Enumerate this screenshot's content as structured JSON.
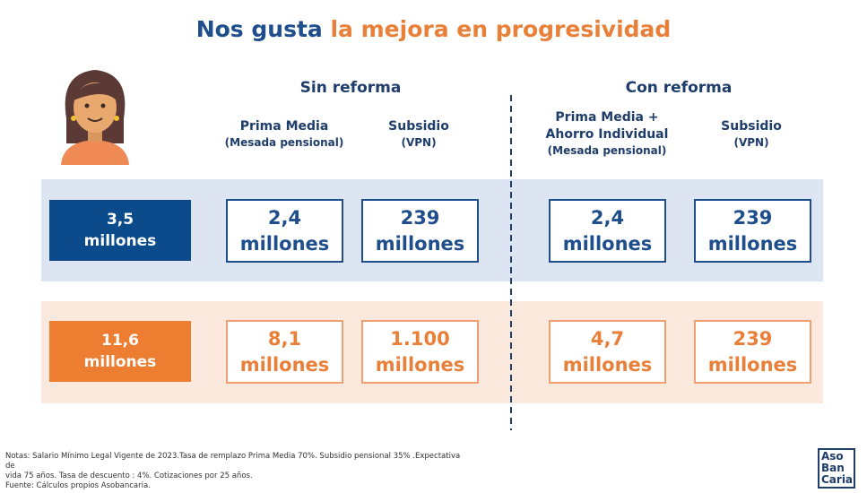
{
  "header": {
    "title_part1": "Nos gusta",
    "title_part2": "la mejora en progresividad"
  },
  "sections": [
    "Sin reforma",
    "Con reforma"
  ],
  "columns": [
    [
      {
        "text": "Prima Media",
        "size": "big"
      },
      {
        "text": "(Mesada pensional)",
        "size": "small"
      }
    ],
    [
      {
        "text": "Subsidio",
        "size": "big"
      },
      {
        "text": "(VPN)",
        "size": "small"
      }
    ],
    [
      {
        "text": "Prima Media +",
        "size": "big"
      },
      {
        "text": "Ahorro Individual",
        "size": "big"
      },
      {
        "text": "(Mesada pensional)",
        "size": "small"
      }
    ],
    [
      {
        "text": "Subsidio",
        "size": "big"
      },
      {
        "text": "(VPN)",
        "size": "small"
      }
    ]
  ],
  "rows": [
    {
      "label": [
        "3,5",
        "millones"
      ],
      "cells": [
        [
          "2,4",
          "millones"
        ],
        [
          "239",
          "millones"
        ],
        [
          "2,4",
          "millones"
        ],
        [
          "239",
          "millones"
        ]
      ]
    },
    {
      "label": [
        "11,6",
        "millones"
      ],
      "cells": [
        [
          "8,1",
          "millones"
        ],
        [
          "1.100",
          "millones"
        ],
        [
          "4,7",
          "millones"
        ],
        [
          "239",
          "millones"
        ]
      ]
    }
  ],
  "notes": [
    "Notas: Salario Mínimo Legal Vigente de 2023.Tasa de remplazo Prima Media 70%. Subsidio pensional 35% .Expectativa de",
    "vida 75 años. Tasa de descuento : 4%. Cotizaciones por 25 años.",
    "Fuente: Cálculos propios Asobancaria."
  ],
  "logo": [
    "Aso",
    "Ban",
    "Caria"
  ]
}
